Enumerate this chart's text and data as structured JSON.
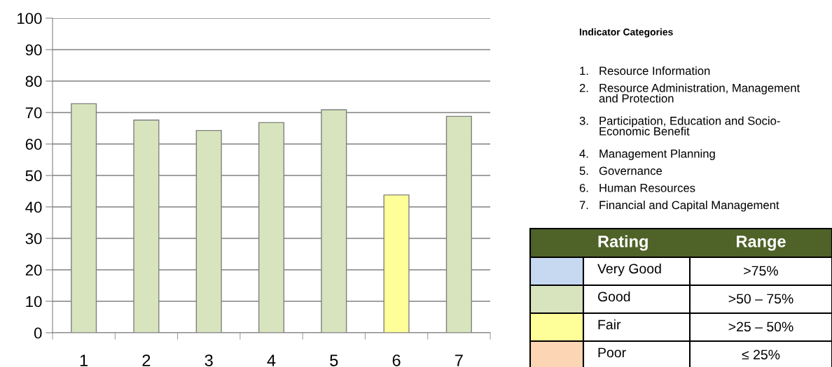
{
  "chart_data": {
    "type": "bar",
    "categories": [
      "1",
      "2",
      "3",
      "4",
      "5",
      "6",
      "7"
    ],
    "values": [
      72.8,
      67.6,
      64.3,
      66.8,
      70.9,
      43.8,
      68.8
    ],
    "colors": [
      "#d7e4bd",
      "#d7e4bd",
      "#d7e4bd",
      "#d7e4bd",
      "#d7e4bd",
      "#ffff99",
      "#d7e4bd"
    ],
    "ylim": [
      0,
      100
    ],
    "yticks": [
      0,
      10,
      20,
      30,
      40,
      50,
      60,
      70,
      80,
      90,
      100
    ],
    "grid": "y",
    "annotations": [
      "Indicator Categories",
      "1. Resource Information",
      "2. Resource Administration, Management\nand Protection",
      "3. Participation, Education and Socio-\nEconomic Benefit",
      "4. Management Planning",
      "5. Governance",
      "6. Human Resources",
      "7. Financial and Capital Management",
      "Rating",
      "Range",
      "Very Good",
      ">75%",
      "Good",
      ">50 – 75%",
      "Fair",
      ">25 – 50%",
      "Poor",
      "≤ 25%"
    ]
  }
}
